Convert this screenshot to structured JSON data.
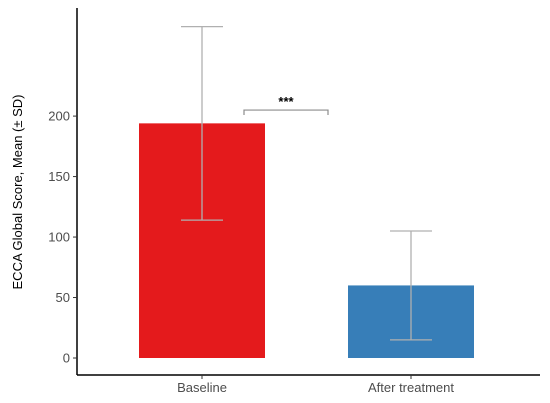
{
  "chart_data": {
    "type": "bar",
    "title": "",
    "xlabel": "",
    "ylabel": "ECCA Global Score, Mean (± SD)",
    "categories": [
      "Baseline",
      "After treatment"
    ],
    "values": [
      194,
      60
    ],
    "error": [
      80,
      45
    ],
    "colors": [
      "#e41a1c",
      "#377eb8"
    ],
    "yticks": [
      0,
      50,
      100,
      150,
      200
    ],
    "ylim": [
      -8,
      290
    ],
    "grid": false,
    "significance": {
      "between": [
        0,
        1
      ],
      "label": "***",
      "y": 205
    }
  }
}
